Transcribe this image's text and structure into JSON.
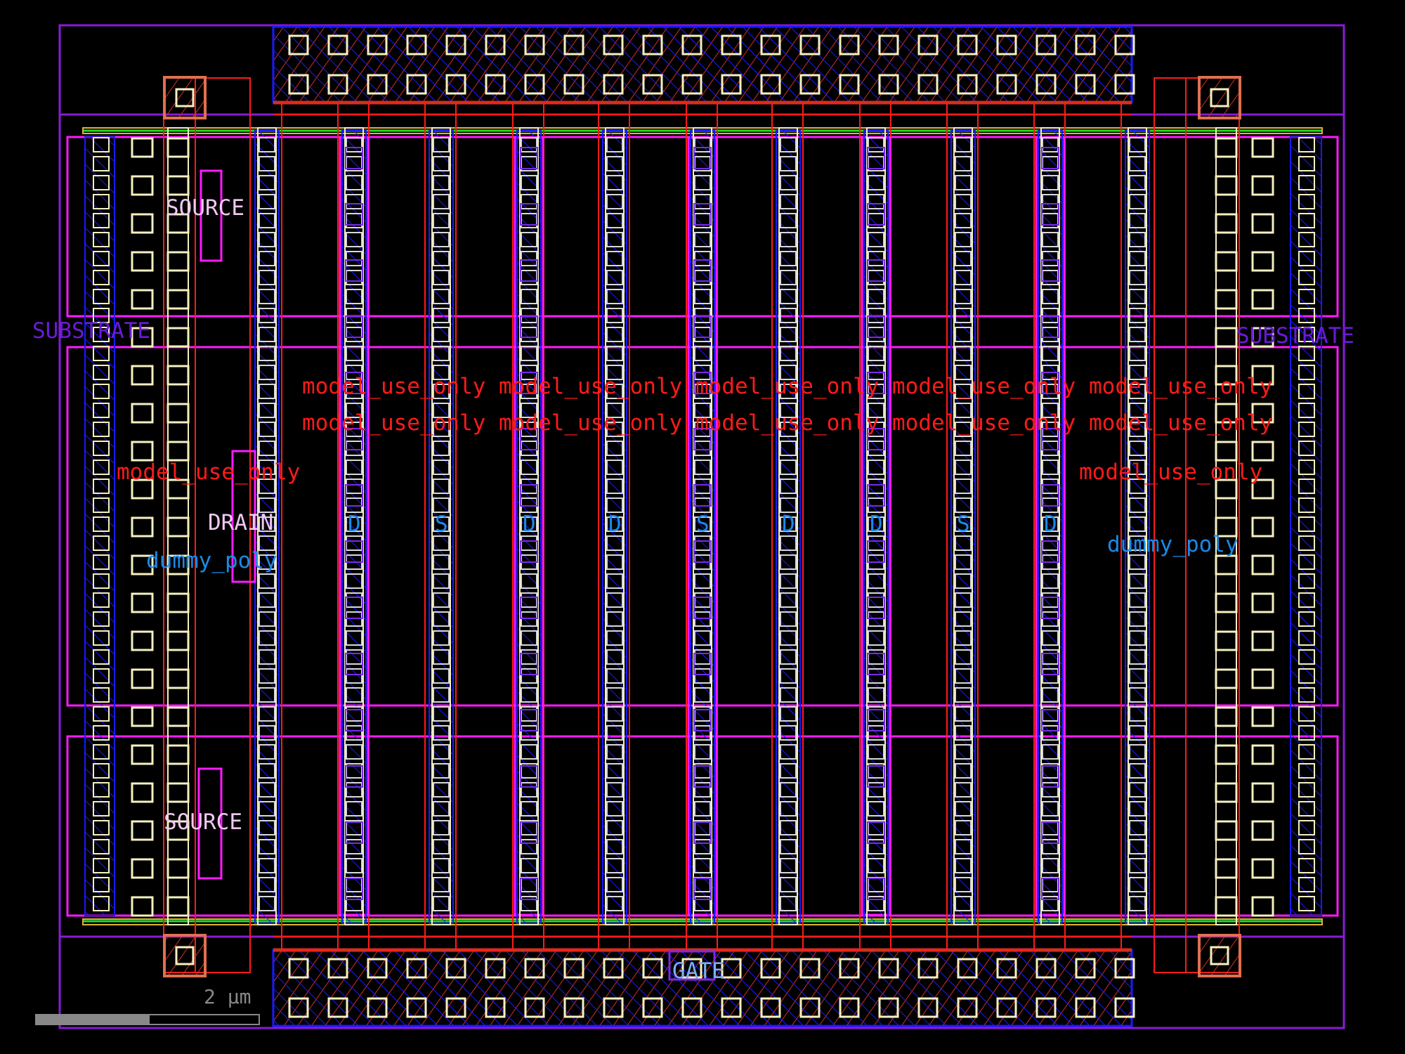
{
  "view": "layout-viewer",
  "colors": {
    "background": "#000000",
    "boundary": "#8a1ad6",
    "poly": "#ff1a1a",
    "diffusion": "#1a1aff",
    "contact": "#f5f0c0",
    "implant": "#ff1aff",
    "well_edge": "#22dd22",
    "label_pin": "#f0c8f0",
    "label_substrate": "#6a1bd6",
    "label_model": "#ff1a1a",
    "label_dummy": "#1a8ae6",
    "label_sd": "#1a8ae6",
    "label_gate": "#7ab0f0",
    "scalebar": "#888888"
  },
  "labels": {
    "source_top": "SOURCE",
    "source_bottom": "SOURCE",
    "drain": "DRAIN",
    "gate": "GATE",
    "substrate_left": "SUBSTRATE",
    "substrate_right": "SUBSTRATE",
    "dummy_poly_left": "dummy_poly",
    "dummy_poly_right": "dummy_poly",
    "model_use_only": "model_use_only",
    "finger_terminals": [
      "D",
      "S",
      "D",
      "D",
      "S",
      "D",
      "D",
      "S",
      "D"
    ]
  },
  "scalebar": {
    "label": "2 µm"
  }
}
